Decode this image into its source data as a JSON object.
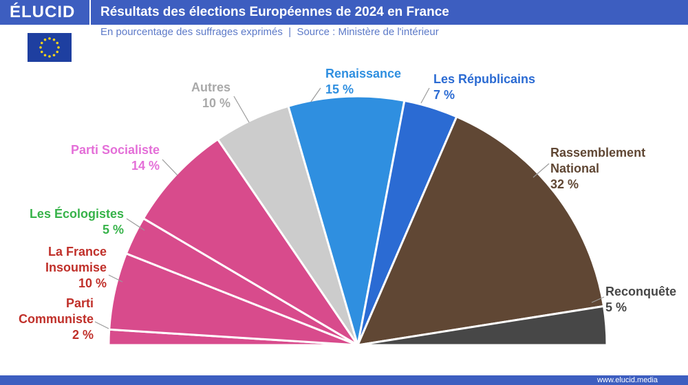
{
  "brand": "ÉLUCID",
  "footer": "www.elucid.media",
  "chart_data": {
    "type": "half-pie",
    "title": "Résultats des élections Européennes de 2024 en France",
    "subtitle": "En pourcentage des suffrages exprimés  |  Source : Ministère de l'intérieur",
    "categories": [
      "Parti Communiste",
      "La France Insoumise",
      "Les Écologistes",
      "Parti Socialiste",
      "Autres",
      "Renaissance",
      "Les Républicains",
      "Rassemblement National",
      "Reconquête"
    ],
    "values": [
      2,
      10,
      5,
      14,
      10,
      15,
      7,
      32,
      5
    ],
    "value_labels": [
      "2 %",
      "10 %",
      "5 %",
      "14 %",
      "10 %",
      "15 %",
      "7 %",
      "32 %",
      "5 %"
    ],
    "colors": [
      "#d84b8c",
      "#d84b8c",
      "#d84b8c",
      "#d84b8c",
      "#cccccc",
      "#2f8fe0",
      "#2b6bd3",
      "#604734",
      "#474747"
    ],
    "label_colors": [
      "#c0302a",
      "#c0302a",
      "#37b34a",
      "#e46fd8",
      "#a9a9a9",
      "#2f8fe0",
      "#2b6bd3",
      "#604734",
      "#474747"
    ]
  }
}
